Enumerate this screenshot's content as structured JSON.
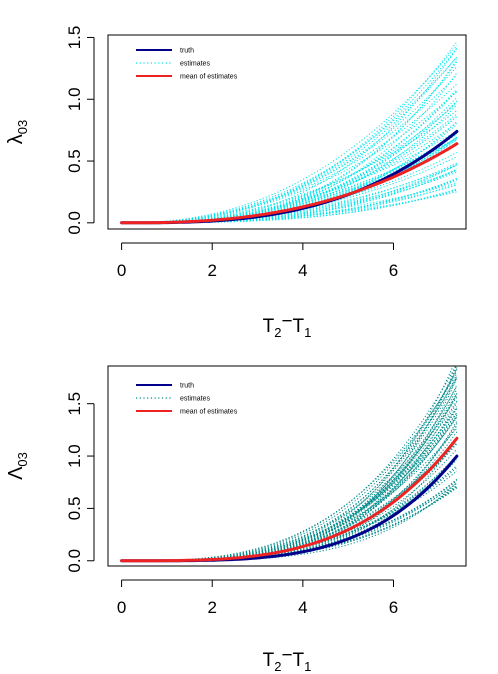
{
  "chart_data": [
    {
      "type": "line",
      "xlabel": {
        "main": "T",
        "sub1": "2",
        "minus": "−",
        "main2": "T",
        "sub2": "1"
      },
      "ylabel": {
        "main": "λ",
        "sub": "03"
      },
      "xlim": [
        -0.3,
        7.6
      ],
      "ylim": [
        -0.05,
        1.52
      ],
      "x_ticks": [
        0,
        2,
        4,
        6
      ],
      "x_tick_labels": [
        "0",
        "2",
        "4",
        "6"
      ],
      "y_ticks": [
        0.0,
        0.5,
        1.0,
        1.5
      ],
      "y_tick_labels": [
        "0.0",
        "0.5",
        "1.0",
        "1.5"
      ],
      "legend": {
        "position": "top-left",
        "entries": [
          {
            "label": "truth",
            "color": "#00008b",
            "style": "solid"
          },
          {
            "label": "estimates",
            "color": "#00e5ee",
            "style": "dotted"
          },
          {
            "label": "mean of estimates",
            "color": "#ee2222",
            "style": "solid"
          }
        ]
      },
      "series": [
        {
          "name": "truth",
          "color": "#00008b",
          "style": "solid",
          "x_max": 7.4,
          "y_at_x_max": 0.74,
          "exponent": 3
        },
        {
          "name": "mean of estimates",
          "color": "#ee2222",
          "style": "solid",
          "x_max": 7.4,
          "y_at_x_max": 0.64,
          "exponent": 2.6
        }
      ],
      "estimates": {
        "color": "#00e5ee",
        "count": 60,
        "x_max": 7.4,
        "y_at_x_max_range": [
          0.24,
          1.47
        ],
        "exponent_range": [
          2.2,
          3.1
        ]
      }
    },
    {
      "type": "line",
      "xlabel": {
        "main": "T",
        "sub1": "2",
        "minus": "−",
        "main2": "T",
        "sub2": "1"
      },
      "ylabel": {
        "main": "Λ",
        "sub": "03"
      },
      "xlim": [
        -0.3,
        7.6
      ],
      "ylim": [
        -0.05,
        1.86
      ],
      "x_ticks": [
        0,
        2,
        4,
        6
      ],
      "x_tick_labels": [
        "0",
        "2",
        "4",
        "6"
      ],
      "y_ticks": [
        0.0,
        0.5,
        1.0,
        1.5
      ],
      "y_tick_labels": [
        "0.0",
        "0.5",
        "1.0",
        "1.5"
      ],
      "legend": {
        "position": "top-left",
        "entries": [
          {
            "label": "truth",
            "color": "#00008b",
            "style": "solid"
          },
          {
            "label": "estimates",
            "color": "#008b8b",
            "style": "dotted"
          },
          {
            "label": "mean of estimates",
            "color": "#ee2222",
            "style": "solid"
          }
        ]
      },
      "series": [
        {
          "name": "truth",
          "color": "#00008b",
          "style": "solid",
          "x_max": 7.4,
          "y_at_x_max": 1.0,
          "exponent": 4
        },
        {
          "name": "mean of estimates",
          "color": "#ee2222",
          "style": "solid",
          "x_max": 7.4,
          "y_at_x_max": 1.17,
          "exponent": 3.5
        }
      ],
      "estimates": {
        "color": "#008b8b",
        "count": 60,
        "x_max": 7.4,
        "y_at_x_max_range": [
          0.66,
          1.95
        ],
        "exponent_range": [
          3.0,
          4.2
        ]
      }
    }
  ]
}
